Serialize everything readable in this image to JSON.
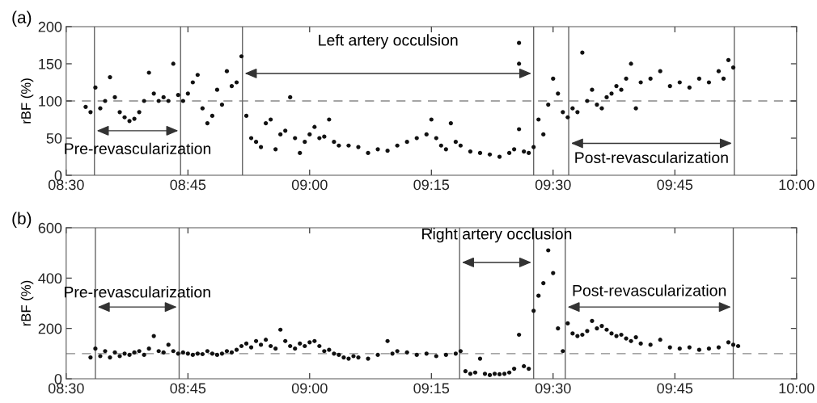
{
  "chart_data": [
    {
      "type": "scatter",
      "title": "(a)",
      "ylabel": "rBF (%)",
      "marker": "circle",
      "grid": false,
      "xlim": [
        8.5,
        10.0
      ],
      "xticks": [
        {
          "value": 8.5,
          "label": "08:30"
        },
        {
          "value": 8.75,
          "label": "08:45"
        },
        {
          "value": 9.0,
          "label": "09:00"
        },
        {
          "value": 9.25,
          "label": "09:15"
        },
        {
          "value": 9.5,
          "label": "09:30"
        },
        {
          "value": 9.75,
          "label": "09:45"
        },
        {
          "value": 10.0,
          "label": "10:00"
        }
      ],
      "ylim": [
        0,
        200
      ],
      "yticks": [
        0,
        50,
        100,
        150,
        200
      ],
      "series": [
        {
          "color": "#111111",
          "x": [
            8.54,
            8.55,
            8.56,
            8.57,
            8.58,
            8.59,
            8.6,
            8.61,
            8.62,
            8.63,
            8.64,
            8.65,
            8.66,
            8.67,
            8.68,
            8.69,
            8.7,
            8.71,
            8.72,
            8.73,
            8.74,
            8.75,
            8.76,
            8.77,
            8.78,
            8.79,
            8.8,
            8.81,
            8.82,
            8.83,
            8.84,
            8.85,
            8.86,
            8.87,
            8.88,
            8.89,
            8.9,
            8.91,
            8.92,
            8.93,
            8.94,
            8.95,
            8.96,
            8.97,
            8.98,
            8.99,
            9.0,
            9.01,
            9.02,
            9.03,
            9.04,
            9.05,
            9.06,
            9.08,
            9.1,
            9.12,
            9.14,
            9.16,
            9.18,
            9.2,
            9.22,
            9.24,
            9.25,
            9.26,
            9.27,
            9.28,
            9.29,
            9.3,
            9.31,
            9.33,
            9.35,
            9.37,
            9.39,
            9.41,
            9.42,
            9.43,
            9.43,
            9.43,
            9.44,
            9.45,
            9.46,
            9.47,
            9.48,
            9.49,
            9.5,
            9.51,
            9.52,
            9.53,
            9.54,
            9.55,
            9.56,
            9.57,
            9.58,
            9.59,
            9.6,
            9.61,
            9.62,
            9.63,
            9.64,
            9.65,
            9.66,
            9.67,
            9.68,
            9.7,
            9.72,
            9.74,
            9.76,
            9.78,
            9.8,
            9.82,
            9.84,
            9.85,
            9.86,
            9.87
          ],
          "values": [
            92,
            85,
            118,
            90,
            100,
            132,
            105,
            85,
            78,
            73,
            76,
            85,
            100,
            138,
            110,
            100,
            105,
            100,
            150,
            108,
            100,
            110,
            125,
            135,
            90,
            70,
            80,
            115,
            95,
            140,
            120,
            125,
            160,
            80,
            50,
            45,
            38,
            70,
            75,
            35,
            55,
            60,
            105,
            50,
            30,
            45,
            55,
            65,
            50,
            52,
            75,
            45,
            40,
            40,
            38,
            30,
            35,
            33,
            40,
            45,
            50,
            55,
            75,
            50,
            40,
            35,
            70,
            45,
            40,
            32,
            30,
            28,
            25,
            30,
            35,
            178,
            150,
            62,
            32,
            30,
            38,
            75,
            55,
            95,
            130,
            110,
            85,
            78,
            90,
            85,
            165,
            100,
            115,
            95,
            90,
            105,
            110,
            120,
            115,
            130,
            150,
            90,
            125,
            130,
            140,
            120,
            125,
            118,
            130,
            125,
            140,
            130,
            155,
            145
          ]
        }
      ],
      "ref_lines": [
        {
          "axis": "y",
          "value": 100,
          "color": "#888888",
          "line_style": "dashed"
        },
        {
          "axis": "x",
          "value": 8.558,
          "color": "#666666",
          "line_style": "solid"
        },
        {
          "axis": "x",
          "value": 8.735,
          "color": "#666666",
          "line_style": "solid"
        },
        {
          "axis": "x",
          "value": 8.862,
          "color": "#666666",
          "line_style": "solid"
        },
        {
          "axis": "x",
          "value": 9.46,
          "color": "#666666",
          "line_style": "solid"
        },
        {
          "axis": "x",
          "value": 9.532,
          "color": "#666666",
          "line_style": "solid"
        },
        {
          "axis": "x",
          "value": 9.872,
          "color": "#666666",
          "line_style": "solid"
        }
      ],
      "annotations": [
        "Pre-revascularization",
        "Left artery occulsion",
        "Post-revascularization"
      ]
    },
    {
      "type": "scatter",
      "title": "(b)",
      "ylabel": "rBF (%)",
      "marker": "circle",
      "grid": false,
      "xlim": [
        8.5,
        10.0
      ],
      "xticks": [
        {
          "value": 8.5,
          "label": "08:30"
        },
        {
          "value": 8.75,
          "label": "08:45"
        },
        {
          "value": 9.0,
          "label": "09:00"
        },
        {
          "value": 9.25,
          "label": "09:15"
        },
        {
          "value": 9.5,
          "label": "09:30"
        },
        {
          "value": 9.75,
          "label": "09:45"
        },
        {
          "value": 10.0,
          "label": "10:00"
        }
      ],
      "ylim": [
        0,
        600
      ],
      "yticks": [
        0,
        200,
        400,
        600
      ],
      "series": [
        {
          "color": "#111111",
          "x": [
            8.55,
            8.56,
            8.57,
            8.58,
            8.59,
            8.6,
            8.61,
            8.62,
            8.63,
            8.64,
            8.65,
            8.66,
            8.67,
            8.68,
            8.69,
            8.7,
            8.71,
            8.72,
            8.73,
            8.74,
            8.75,
            8.76,
            8.77,
            8.78,
            8.79,
            8.8,
            8.81,
            8.82,
            8.83,
            8.84,
            8.85,
            8.86,
            8.87,
            8.88,
            8.89,
            8.9,
            8.91,
            8.92,
            8.93,
            8.94,
            8.95,
            8.96,
            8.97,
            8.98,
            8.99,
            9.0,
            9.01,
            9.02,
            9.03,
            9.04,
            9.05,
            9.06,
            9.07,
            9.08,
            9.09,
            9.1,
            9.12,
            9.14,
            9.16,
            9.17,
            9.18,
            9.2,
            9.22,
            9.24,
            9.26,
            9.28,
            9.3,
            9.31,
            9.32,
            9.33,
            9.34,
            9.35,
            9.36,
            9.37,
            9.38,
            9.39,
            9.4,
            9.41,
            9.42,
            9.43,
            9.44,
            9.45,
            9.46,
            9.47,
            9.48,
            9.49,
            9.5,
            9.51,
            9.52,
            9.53,
            9.54,
            9.55,
            9.56,
            9.57,
            9.58,
            9.59,
            9.6,
            9.61,
            9.62,
            9.63,
            9.64,
            9.65,
            9.66,
            9.67,
            9.68,
            9.7,
            9.72,
            9.74,
            9.76,
            9.78,
            9.8,
            9.82,
            9.84,
            9.86,
            9.87,
            9.88
          ],
          "values": [
            85,
            120,
            90,
            110,
            85,
            105,
            90,
            100,
            95,
            105,
            110,
            95,
            120,
            170,
            110,
            105,
            135,
            110,
            100,
            105,
            100,
            95,
            100,
            98,
            110,
            100,
            95,
            100,
            110,
            105,
            115,
            130,
            140,
            125,
            150,
            135,
            155,
            130,
            120,
            195,
            150,
            130,
            120,
            140,
            130,
            145,
            150,
            130,
            110,
            115,
            100,
            95,
            85,
            80,
            90,
            85,
            80,
            95,
            150,
            100,
            110,
            105,
            95,
            100,
            90,
            95,
            100,
            110,
            30,
            20,
            25,
            80,
            20,
            15,
            20,
            18,
            20,
            25,
            40,
            175,
            50,
            40,
            270,
            330,
            380,
            510,
            420,
            200,
            110,
            220,
            180,
            170,
            175,
            190,
            230,
            200,
            210,
            195,
            180,
            170,
            175,
            160,
            150,
            165,
            140,
            135,
            155,
            125,
            120,
            125,
            115,
            120,
            125,
            145,
            135,
            130
          ]
        }
      ],
      "ref_lines": [
        {
          "axis": "y",
          "value": 100,
          "color": "#888888",
          "line_style": "dashed"
        },
        {
          "axis": "x",
          "value": 8.56,
          "color": "#666666",
          "line_style": "solid"
        },
        {
          "axis": "x",
          "value": 8.732,
          "color": "#666666",
          "line_style": "solid"
        },
        {
          "axis": "x",
          "value": 9.308,
          "color": "#666666",
          "line_style": "solid"
        },
        {
          "axis": "x",
          "value": 9.46,
          "color": "#666666",
          "line_style": "solid"
        },
        {
          "axis": "x",
          "value": 9.525,
          "color": "#666666",
          "line_style": "solid"
        },
        {
          "axis": "x",
          "value": 9.87,
          "color": "#666666",
          "line_style": "solid"
        }
      ],
      "annotations": [
        "Pre-revascularization",
        "Right artery occlusion",
        "Post-revascularization"
      ]
    }
  ]
}
